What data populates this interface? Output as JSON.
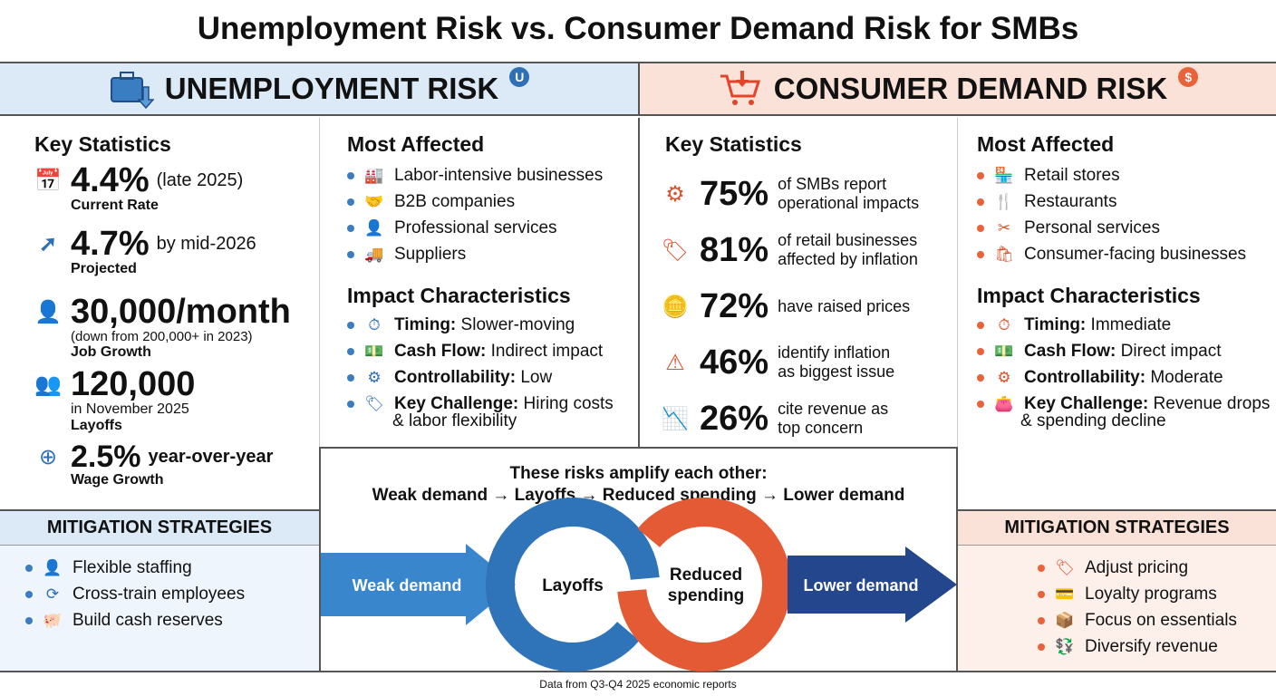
{
  "title": "Unemployment Risk vs. Consumer Demand Risk for SMBs",
  "colors": {
    "blue": "#2f6fb5",
    "orange": "#e8623a",
    "blue_bg": "#dceaf7",
    "orange_bg": "#fbe2d8"
  },
  "left": {
    "header": "UNEMPLOYMENT RISK",
    "badge": "U",
    "header_icon": "briefcase-down-icon",
    "key_stats_title": "Key Statistics",
    "stats": [
      {
        "value": "4.4%",
        "qualifier": "(late 2025)",
        "label": "Current Rate",
        "icon": "calendar-icon"
      },
      {
        "value": "4.7%",
        "qualifier": "by mid-2026",
        "label": "Projected",
        "icon": "trend-up-arrow-icon"
      },
      {
        "value": "30,000/month",
        "qualifier": "(down from 200,000+ in 2023)",
        "label": "Job Growth",
        "icon": "person-down-icon"
      },
      {
        "value": "120,000",
        "qualifier": "in November 2025",
        "label": "Layoffs",
        "icon": "people-icon"
      },
      {
        "value": "2.5%",
        "qualifier": "year-over-year",
        "label": "Wage Growth",
        "icon": "coin-up-icon"
      }
    ],
    "most_affected_title": "Most Affected",
    "most_affected": [
      {
        "label": "Labor-intensive businesses",
        "icon": "factory-icon"
      },
      {
        "label": "B2B companies",
        "icon": "handshake-icon"
      },
      {
        "label": "Professional services",
        "icon": "person-icon"
      },
      {
        "label": "Suppliers",
        "icon": "truck-icon"
      }
    ],
    "impact_title": "Impact Characteristics",
    "impact": [
      {
        "key": "Timing:",
        "value": "Slower-moving",
        "icon": "stopwatch-icon"
      },
      {
        "key": "Cash Flow:",
        "value": "Indirect impact",
        "icon": "cash-icon"
      },
      {
        "key": "Controllability:",
        "value": "Low",
        "icon": "gear-person-icon"
      },
      {
        "key": "Key Challenge:",
        "value": "Hiring costs",
        "value2": "& labor flexibility",
        "icon": "tag-icon"
      }
    ],
    "mitigation_title": "MITIGATION STRATEGIES",
    "mitigation": [
      {
        "label": "Flexible staffing",
        "icon": "person-clock-icon"
      },
      {
        "label": "Cross-train employees",
        "icon": "people-cycle-icon"
      },
      {
        "label": "Build cash reserves",
        "icon": "piggy-bank-icon"
      }
    ]
  },
  "right": {
    "header": "CONSUMER DEMAND RISK",
    "badge": "$",
    "header_icon": "cart-down-icon",
    "key_stats_title": "Key Statistics",
    "stats": [
      {
        "value": "75%",
        "line1": "of SMBs report",
        "line2": "operational impacts",
        "icon": "gears-icon"
      },
      {
        "value": "81%",
        "line1": "of retail businesses",
        "line2": "affected by inflation",
        "icon": "price-tag-up-icon"
      },
      {
        "value": "72%",
        "line1": "have raised prices",
        "line2": "",
        "icon": "coins-up-icon"
      },
      {
        "value": "46%",
        "line1": "identify inflation",
        "line2": "as biggest issue",
        "icon": "warning-icon"
      },
      {
        "value": "26%",
        "line1": "cite revenue as",
        "line2": "top concern",
        "icon": "chart-down-icon"
      }
    ],
    "most_affected_title": "Most Affected",
    "most_affected": [
      {
        "label": "Retail stores",
        "icon": "store-icon"
      },
      {
        "label": "Restaurants",
        "icon": "fork-knife-icon"
      },
      {
        "label": "Personal services",
        "icon": "stylist-icon"
      },
      {
        "label": "Consumer-facing businesses",
        "icon": "shopping-bag-icon"
      }
    ],
    "impact_title": "Impact Characteristics",
    "impact": [
      {
        "key": "Timing:",
        "value": "Immediate",
        "icon": "fast-stopwatch-icon"
      },
      {
        "key": "Cash Flow:",
        "value": "Direct impact",
        "icon": "cash-icon"
      },
      {
        "key": "Controllability:",
        "value": "Moderate",
        "icon": "gear-icon"
      },
      {
        "key": "Key Challenge:",
        "value": "Revenue drops",
        "value2": "& spending decline",
        "icon": "wallet-icon"
      }
    ],
    "mitigation_title": "MITIGATION STRATEGIES",
    "mitigation": [
      {
        "label": "Adjust pricing",
        "icon": "price-tag-gear-icon"
      },
      {
        "label": "Loyalty programs",
        "icon": "card-icon"
      },
      {
        "label": "Focus on essentials",
        "icon": "hand-box-icon"
      },
      {
        "label": "Diversify revenue",
        "icon": "money-split-icon"
      }
    ]
  },
  "cycle": {
    "heading1": "These risks amplify each other:",
    "heading2": "Weak demand → Layoffs → Reduced spending → Lower demand",
    "steps": [
      "Weak demand",
      "Layoffs",
      "Reduced",
      "spending",
      "Lower demand"
    ]
  },
  "footer": "Data from Q3-Q4 2025 economic reports"
}
